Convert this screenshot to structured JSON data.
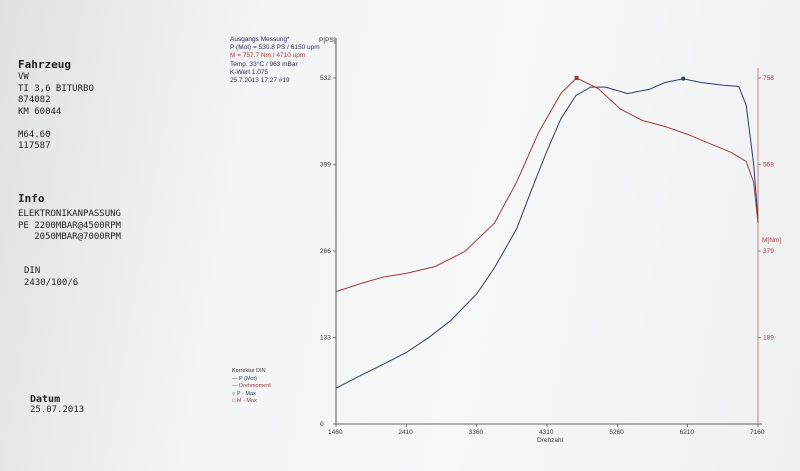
{
  "vehicle": {
    "heading": "Fahrzeug",
    "lines": [
      "VW",
      "TI 3,6 BITURBO",
      "874082",
      "KM 60044",
      "",
      "M64.60",
      "117587"
    ]
  },
  "info": {
    "heading": "Info",
    "lines": [
      "ELEKTRONIKANPASSUNG",
      "PE 2200MBAR@4500RPM",
      "   2050MBAR@7000RPM"
    ]
  },
  "norm": {
    "lines": [
      "DIN",
      "2430/100/6"
    ]
  },
  "date": {
    "heading": "Datum",
    "value": "25.07.2013"
  },
  "measurement": {
    "title": "Ausgangs Messung*",
    "p_line": "P (Mot) = 530.8 PS / 6150 upm",
    "m_line": "M = 757.7 Nm / 4710 upm",
    "temp_line": "Temp. 33°C / 963 mBar",
    "k_line": "K-Wert 1.075",
    "date_line": "25.7.2013 17:27  #19"
  },
  "legend": {
    "title": "Korrektur DIN",
    "items": [
      {
        "sym": "—",
        "label": "P (Mot)",
        "color": "#2b3a6b"
      },
      {
        "sym": "—",
        "label": "Drehmoment",
        "color": "#a33a3a"
      },
      {
        "sym": "○",
        "label": "P - Max",
        "color": "#2b3a6b"
      },
      {
        "sym": "□",
        "label": "M - Max",
        "color": "#a33a3a"
      }
    ]
  },
  "chart_data": {
    "type": "line",
    "xlabel": "Drehzahl",
    "y_left_label": "P[PS]",
    "y_right_label": "M[Nm]",
    "x_ticks": [
      1460,
      2410,
      3360,
      4310,
      5260,
      6210,
      7160
    ],
    "y_left_ticks": [
      0,
      133,
      266,
      399,
      532
    ],
    "y_right_ticks": [
      189,
      379,
      568,
      758
    ],
    "xlim": [
      1460,
      7160
    ],
    "ylim_left": [
      0,
      532
    ],
    "ylim_right": [
      0,
      758
    ],
    "series": [
      {
        "name": "P (Mot)",
        "axis": "left",
        "color": "#2b3a6b",
        "x": [
          1460,
          1800,
          2100,
          2410,
          2700,
          3000,
          3360,
          3600,
          3900,
          4100,
          4310,
          4500,
          4700,
          4900,
          5100,
          5400,
          5700,
          5900,
          6150,
          6400,
          6700,
          6900,
          7000,
          7100,
          7160
        ],
        "y": [
          55,
          75,
          92,
          110,
          132,
          158,
          200,
          240,
          300,
          360,
          420,
          470,
          505,
          518,
          518,
          508,
          515,
          525,
          531,
          525,
          521,
          519,
          490,
          400,
          315
        ]
      },
      {
        "name": "Drehmoment",
        "axis": "right",
        "color": "#a33a3a",
        "x": [
          1460,
          1800,
          2100,
          2410,
          2800,
          3200,
          3600,
          3900,
          4200,
          4500,
          4710,
          5000,
          5300,
          5600,
          5900,
          6200,
          6500,
          6800,
          7000,
          7100,
          7160
        ],
        "y": [
          290,
          308,
          322,
          330,
          345,
          378,
          440,
          530,
          640,
          725,
          758,
          735,
          690,
          665,
          652,
          635,
          615,
          595,
          575,
          530,
          440
        ]
      }
    ],
    "markers": [
      {
        "label": "P - Max",
        "x": 6150,
        "y": 531,
        "axis": "left"
      },
      {
        "label": "M - Max",
        "x": 4710,
        "y": 758,
        "axis": "right"
      }
    ]
  }
}
